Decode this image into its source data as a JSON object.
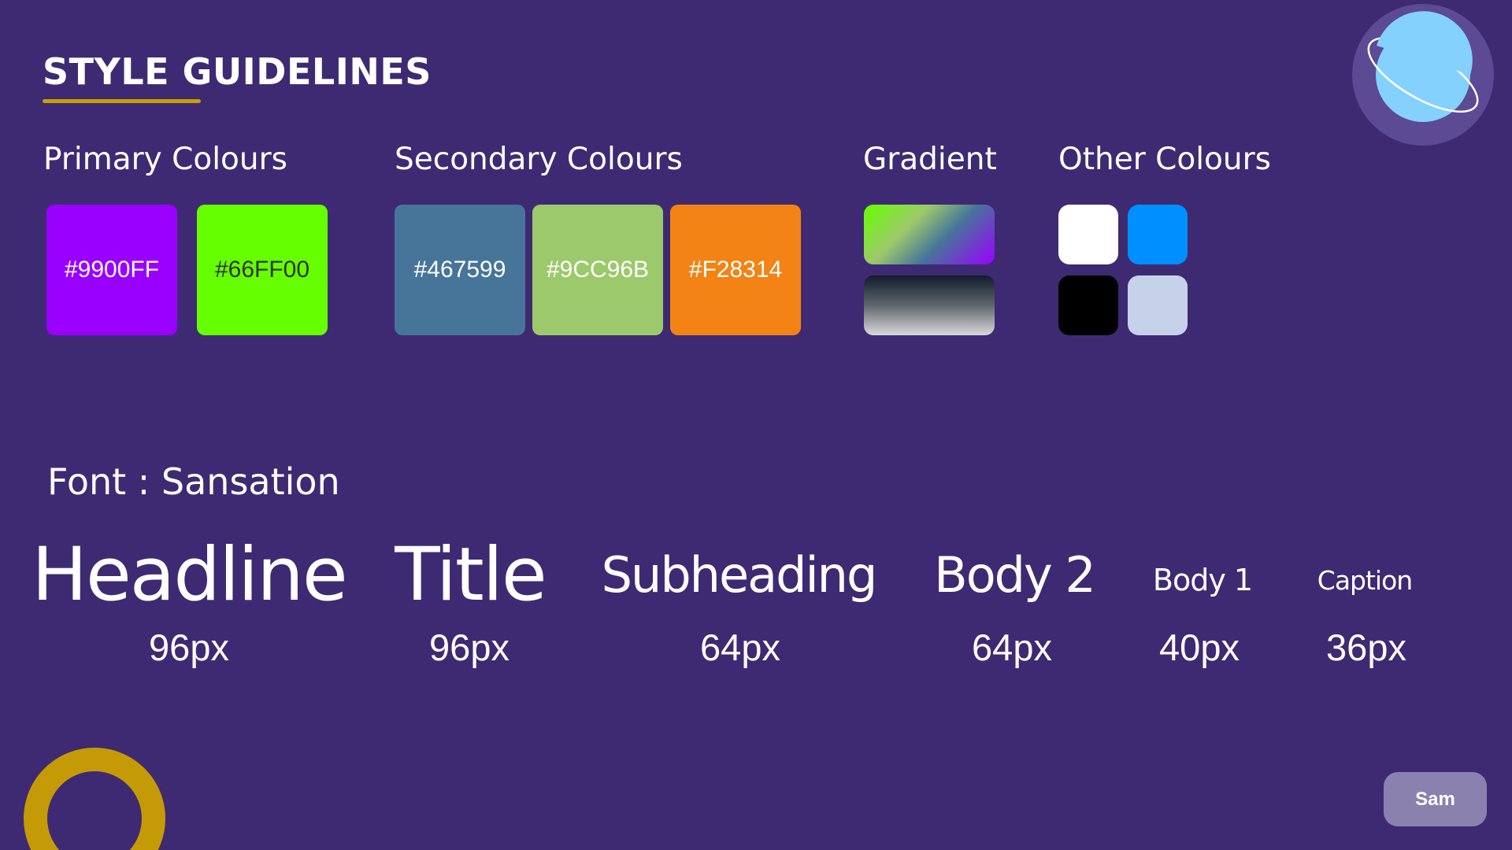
{
  "title": "STYLE GUIDELINES",
  "sections": {
    "primary": {
      "label": "Primary Colours",
      "swatches": [
        {
          "hex": "#9900FF"
        },
        {
          "hex": "#66FF00"
        }
      ]
    },
    "secondary": {
      "label": "Secondary Colours",
      "swatches": [
        {
          "hex": "#467599"
        },
        {
          "hex": "#9CC96B"
        },
        {
          "hex": "#F28314"
        }
      ]
    },
    "gradient": {
      "label": "Gradient"
    },
    "other": {
      "label": "Other Colours",
      "colors": [
        "#FFFFFF",
        "#008FFF",
        "#000000",
        "#C6D2EA"
      ]
    }
  },
  "font": {
    "label": "Font : Sansation",
    "samples": [
      {
        "name": "Headline",
        "size": "96px"
      },
      {
        "name": "Title",
        "size": "96px"
      },
      {
        "name": "Subheading",
        "size": "64px"
      },
      {
        "name": "Body 2",
        "size": "64px"
      },
      {
        "name": "Body 1",
        "size": "40px"
      },
      {
        "name": "Caption",
        "size": "36px"
      }
    ]
  },
  "user_button": "Sam",
  "colors": {
    "background": "#3E2A72",
    "accent": "#C9A000",
    "planet": "#84D1FD",
    "planet_halo": "#5C4A94",
    "button": "#8B81AE"
  }
}
